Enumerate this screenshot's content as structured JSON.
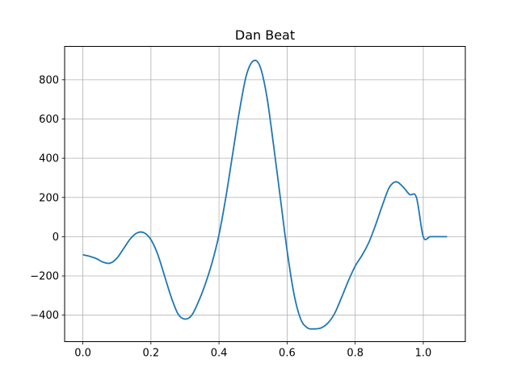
{
  "chart_data": {
    "type": "line",
    "title": "Dan Beat",
    "xlabel": "",
    "ylabel": "",
    "xlim": [
      -0.0535,
      1.1235
    ],
    "ylim": [
      -535,
      970
    ],
    "grid": true,
    "x_ticks": [
      0.0,
      0.2,
      0.4,
      0.6,
      0.8,
      1.0
    ],
    "x_tick_labels": [
      "0.0",
      "0.2",
      "0.4",
      "0.6",
      "0.8",
      "1.0"
    ],
    "y_ticks": [
      -400,
      -200,
      0,
      200,
      400,
      600,
      800
    ],
    "y_tick_labels": [
      "−400",
      "−200",
      "0",
      "200",
      "400",
      "600",
      "800"
    ],
    "series": [
      {
        "color": "#1f77b4",
        "x": [
          0.0,
          0.02,
          0.04,
          0.06,
          0.08,
          0.1,
          0.12,
          0.14,
          0.16,
          0.18,
          0.2,
          0.22,
          0.24,
          0.26,
          0.28,
          0.3,
          0.32,
          0.34,
          0.36,
          0.38,
          0.4,
          0.42,
          0.44,
          0.46,
          0.48,
          0.5,
          0.52,
          0.54,
          0.56,
          0.58,
          0.6,
          0.62,
          0.64,
          0.66,
          0.68,
          0.7,
          0.72,
          0.74,
          0.76,
          0.78,
          0.8,
          0.82,
          0.84,
          0.86,
          0.88,
          0.9,
          0.92,
          0.94,
          0.96,
          0.98,
          1.0,
          1.02,
          1.04,
          1.07
        ],
        "y": [
          -92,
          -100,
          -112,
          -130,
          -135,
          -110,
          -60,
          -10,
          20,
          20,
          -15,
          -90,
          -200,
          -310,
          -395,
          -420,
          -400,
          -330,
          -240,
          -130,
          10,
          200,
          420,
          640,
          820,
          895,
          870,
          720,
          470,
          200,
          -70,
          -290,
          -420,
          -465,
          -470,
          -465,
          -440,
          -390,
          -310,
          -225,
          -150,
          -95,
          -30,
          60,
          160,
          250,
          280,
          255,
          215,
          200,
          0,
          0,
          0,
          0
        ]
      }
    ]
  }
}
